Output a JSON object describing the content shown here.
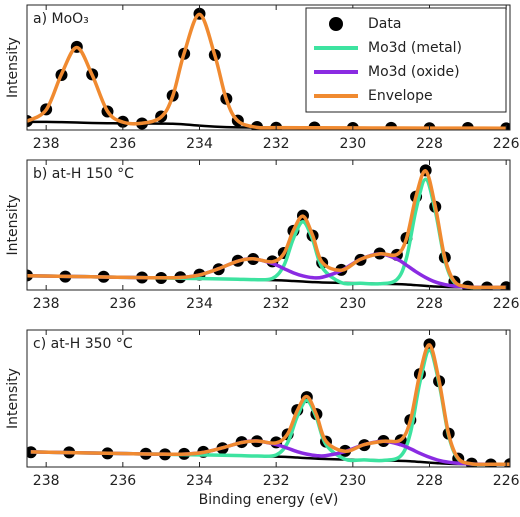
{
  "chart_data": [
    {
      "type": "line",
      "title": "a) MoO₃",
      "ylabel": "Intensity",
      "xlim": [
        238.5,
        225.9
      ],
      "ylim": [
        0,
        1
      ],
      "xticks": [
        238,
        236,
        234,
        232,
        230,
        228,
        226
      ],
      "legend": "upper right",
      "x": [
        238.5,
        238,
        237.6,
        237.2,
        236.8,
        236.4,
        236,
        235.5,
        235,
        234.7,
        234.4,
        234,
        233.6,
        233.3,
        233,
        232.5,
        232,
        231,
        230,
        229,
        228,
        227,
        226
      ],
      "series": [
        {
          "name": "Data",
          "mode": "markers",
          "color": "#000000",
          "values": [
            0.072,
            0.165,
            0.44,
            0.665,
            0.445,
            0.148,
            0.066,
            0.052,
            0.108,
            0.275,
            0.61,
            0.93,
            0.6,
            0.25,
            0.075,
            0.024,
            0.018,
            0.02,
            0.016,
            0.017,
            0.014,
            0.016,
            0.013
          ]
        },
        {
          "mode": "line",
          "color": "#000000",
          "values": [
            0.065,
            0.065,
            0.063,
            0.06,
            0.056,
            0.054,
            0.053,
            0.052,
            0.051,
            0.05,
            0.045,
            0.035,
            0.027,
            0.023,
            0.021,
            0.02,
            0.019,
            0.018,
            0.017,
            0.016,
            0.015,
            0.015,
            0.014
          ]
        },
        {
          "name": "Envelope",
          "mode": "line",
          "color": "#f08a30",
          "values": [
            0.07,
            0.161,
            0.447,
            0.66,
            0.44,
            0.15,
            0.063,
            0.054,
            0.104,
            0.27,
            0.615,
            0.925,
            0.597,
            0.246,
            0.073,
            0.021,
            0.019,
            0.018,
            0.017,
            0.016,
            0.015,
            0.015,
            0.014
          ]
        }
      ]
    },
    {
      "type": "line",
      "title": "b) at-H 150 °C",
      "ylabel": "Intensity",
      "xlim": [
        238.5,
        225.9
      ],
      "ylim": [
        0,
        1
      ],
      "xticks": [
        238,
        236,
        234,
        232,
        230,
        228,
        226
      ],
      "x": [
        238.5,
        237.5,
        236.5,
        235.5,
        235,
        234.5,
        234,
        233.5,
        233,
        232.6,
        232.1,
        231.8,
        231.55,
        231.3,
        231.05,
        230.8,
        230.3,
        229.8,
        229.3,
        228.85,
        228.6,
        228.35,
        228.1,
        227.85,
        227.6,
        227.35,
        227,
        226.5,
        226
      ],
      "series": [
        {
          "name": "Data",
          "mode": "markers",
          "color": "#000000",
          "values": [
            0.112,
            0.103,
            0.102,
            0.096,
            0.092,
            0.098,
            0.118,
            0.16,
            0.225,
            0.238,
            0.22,
            0.285,
            0.455,
            0.572,
            0.418,
            0.21,
            0.155,
            0.232,
            0.281,
            0.27,
            0.4,
            0.718,
            0.92,
            0.64,
            0.25,
            0.064,
            0.026,
            0.019,
            0.021
          ]
        },
        {
          "mode": "line",
          "color": "#000000",
          "values": [
            0.11,
            0.105,
            0.1,
            0.095,
            0.093,
            0.09,
            0.088,
            0.086,
            0.083,
            0.08,
            0.076,
            0.073,
            0.069,
            0.065,
            0.061,
            0.058,
            0.055,
            0.052,
            0.048,
            0.045,
            0.042,
            0.037,
            0.032,
            0.027,
            0.024,
            0.022,
            0.021,
            0.02,
            0.02
          ]
        },
        {
          "name": "Mo3d (metal)",
          "mode": "line",
          "color": "#3de3a0",
          "values": [
            0.11,
            0.105,
            0.1,
            0.095,
            0.093,
            0.09,
            0.088,
            0.086,
            0.083,
            0.08,
            0.089,
            0.188,
            0.396,
            0.525,
            0.388,
            0.173,
            0.057,
            0.052,
            0.048,
            0.081,
            0.247,
            0.619,
            0.852,
            0.609,
            0.229,
            0.058,
            0.022,
            0.02,
            0.02
          ]
        },
        {
          "name": "Mo3d (oxide)",
          "mode": "line",
          "color": "#8a2be2",
          "values": [
            0.11,
            0.105,
            0.1,
            0.095,
            0.094,
            0.096,
            0.116,
            0.164,
            0.222,
            0.24,
            0.204,
            0.165,
            0.132,
            0.108,
            0.095,
            0.098,
            0.15,
            0.236,
            0.278,
            0.237,
            0.191,
            0.14,
            0.096,
            0.062,
            0.042,
            0.03,
            0.023,
            0.02,
            0.02
          ]
        },
        {
          "name": "Envelope",
          "mode": "line",
          "color": "#f08a30",
          "values": [
            0.11,
            0.105,
            0.1,
            0.095,
            0.094,
            0.096,
            0.116,
            0.164,
            0.222,
            0.24,
            0.217,
            0.28,
            0.459,
            0.568,
            0.422,
            0.213,
            0.152,
            0.236,
            0.278,
            0.273,
            0.396,
            0.722,
            0.916,
            0.644,
            0.247,
            0.066,
            0.024,
            0.02,
            0.02
          ]
        }
      ]
    },
    {
      "type": "line",
      "title": "c) at-H 350 °C",
      "ylabel": "Intensity",
      "xlabel": "Binding energy (eV)",
      "xlim": [
        238.5,
        225.9
      ],
      "ylim": [
        0,
        1
      ],
      "xticks": [
        238,
        236,
        234,
        232,
        230,
        228,
        226
      ],
      "x": [
        238.4,
        237.4,
        236.4,
        235.4,
        234.9,
        234.4,
        233.9,
        233.4,
        232.9,
        232.5,
        232,
        231.7,
        231.45,
        231.2,
        230.95,
        230.7,
        230.2,
        229.7,
        229.2,
        228.75,
        228.5,
        228.25,
        228,
        227.75,
        227.5,
        227.25,
        226.9,
        226.4,
        225.9
      ],
      "series": [
        {
          "name": "Data",
          "mode": "markers",
          "color": "#000000",
          "values": [
            0.108,
            0.107,
            0.099,
            0.097,
            0.092,
            0.096,
            0.11,
            0.137,
            0.182,
            0.188,
            0.18,
            0.238,
            0.415,
            0.51,
            0.386,
            0.185,
            0.118,
            0.16,
            0.19,
            0.195,
            0.342,
            0.678,
            0.895,
            0.626,
            0.244,
            0.061,
            0.025,
            0.018,
            0.021
          ]
        },
        {
          "mode": "line",
          "color": "#000000",
          "values": [
            0.11,
            0.105,
            0.1,
            0.095,
            0.093,
            0.09,
            0.088,
            0.086,
            0.083,
            0.08,
            0.076,
            0.073,
            0.069,
            0.065,
            0.061,
            0.058,
            0.055,
            0.052,
            0.048,
            0.045,
            0.042,
            0.037,
            0.032,
            0.027,
            0.024,
            0.022,
            0.021,
            0.02,
            0.02
          ]
        },
        {
          "name": "Mo3d (metal)",
          "mode": "line",
          "color": "#3de3a0",
          "values": [
            0.11,
            0.105,
            0.1,
            0.095,
            0.093,
            0.09,
            0.088,
            0.086,
            0.083,
            0.08,
            0.088,
            0.178,
            0.368,
            0.485,
            0.36,
            0.163,
            0.057,
            0.052,
            0.048,
            0.081,
            0.247,
            0.619,
            0.852,
            0.609,
            0.229,
            0.058,
            0.022,
            0.02,
            0.02
          ]
        },
        {
          "name": "Mo3d (oxide)",
          "mode": "line",
          "color": "#8a2be2",
          "values": [
            0.11,
            0.105,
            0.1,
            0.095,
            0.094,
            0.094,
            0.107,
            0.14,
            0.179,
            0.19,
            0.164,
            0.137,
            0.112,
            0.094,
            0.083,
            0.083,
            0.113,
            0.164,
            0.188,
            0.162,
            0.133,
            0.1,
            0.071,
            0.048,
            0.035,
            0.027,
            0.022,
            0.02,
            0.02
          ]
        },
        {
          "name": "Envelope",
          "mode": "line",
          "color": "#f08a30",
          "values": [
            0.11,
            0.105,
            0.1,
            0.095,
            0.094,
            0.094,
            0.107,
            0.14,
            0.179,
            0.19,
            0.176,
            0.242,
            0.411,
            0.514,
            0.382,
            0.188,
            0.115,
            0.164,
            0.188,
            0.198,
            0.338,
            0.682,
            0.891,
            0.63,
            0.24,
            0.063,
            0.023,
            0.02,
            0.02
          ]
        }
      ]
    }
  ]
}
